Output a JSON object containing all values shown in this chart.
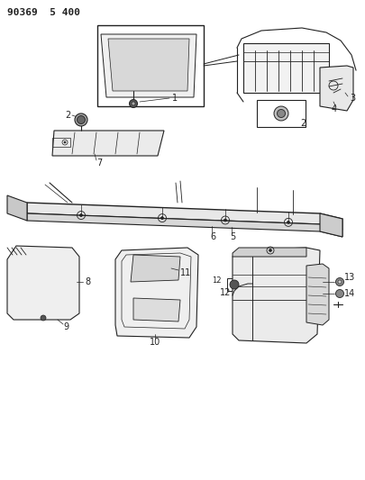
{
  "title": "90369  5 400",
  "bg_color": "#ffffff",
  "line_color": "#222222",
  "figsize": [
    4.06,
    5.33
  ],
  "dpi": 100
}
